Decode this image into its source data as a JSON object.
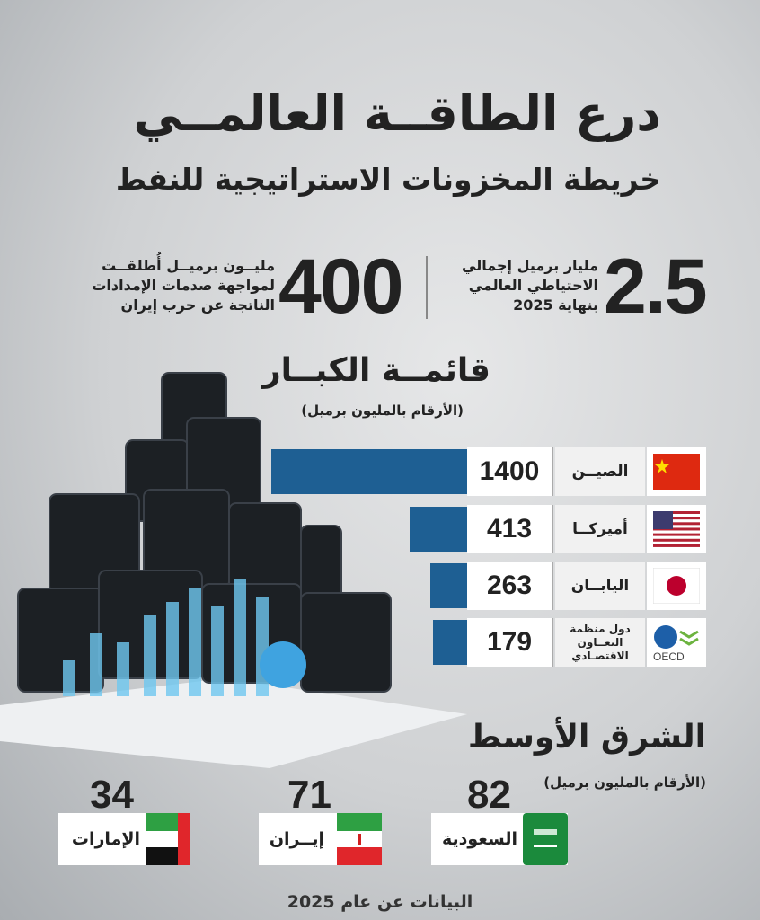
{
  "header": {
    "title": "درع الطاقــة العالمــي",
    "subtitle": "خريطة المخزونات الاستراتيجية للنفط"
  },
  "stats": [
    {
      "value": "2.5",
      "lines": [
        "مليار برميل إجمالي",
        "الاحتياطي العالمي",
        "بنهاية 2025"
      ]
    },
    {
      "value": "400",
      "lines": [
        "مليــون برميــل أُطلقــت",
        "لمواجهة صدمات الإمدادات",
        "الناتجة عن حرب إيران"
      ]
    }
  ],
  "chart_data": {
    "type": "bar",
    "orientation": "horizontal",
    "title": "قائمــة الكبــار",
    "subtitle": "(الأرقام بالمليون برميل)",
    "categories": [
      "الصيــن",
      "أميركــا",
      "اليابــان",
      "دول منظمة التعــاون الاقتصـادي"
    ],
    "values": [
      1400,
      413,
      263,
      179
    ],
    "bar_color": "#1e5f93"
  },
  "rows": [
    {
      "name": "الصيــن",
      "value": "1400",
      "flag": "china-flag"
    },
    {
      "name": "أميركــا",
      "value": "413",
      "flag": "usa-flag"
    },
    {
      "name": "اليابــان",
      "value": "263",
      "flag": "japan-flag"
    },
    {
      "name_lines": [
        "دول منظمة",
        "التعــاون",
        "الاقتصـادي"
      ],
      "value": "179",
      "flag": "oecd-logo",
      "logo_text": "OECD"
    }
  ],
  "middle_east": {
    "title": "الشرق الأوسط",
    "subtitle": "(الأرقام بالمليون برميل)",
    "items": [
      {
        "name": "السعودية",
        "value": "82"
      },
      {
        "name": "إيــران",
        "value": "71"
      },
      {
        "name": "الإمارات",
        "value": "34"
      }
    ]
  },
  "footer": "البيانات عن عام 2025"
}
